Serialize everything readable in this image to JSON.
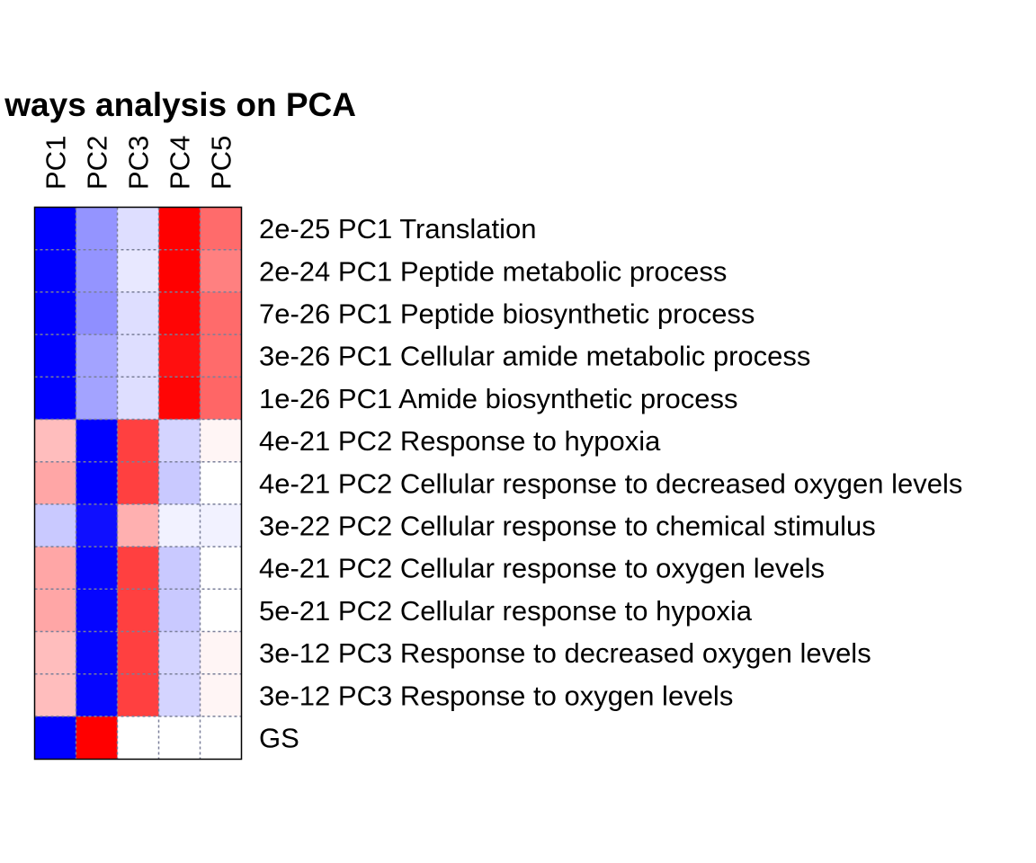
{
  "chart_data": {
    "type": "heatmap",
    "title": "ways analysis on PCA",
    "columns": [
      "PC1",
      "PC2",
      "PC3",
      "PC4",
      "PC5"
    ],
    "rows": [
      "2e-25 PC1 Translation",
      "2e-24 PC1 Peptide metabolic process",
      "7e-26 PC1 Peptide biosynthetic process",
      "3e-26 PC1 Cellular amide metabolic process",
      "1e-26 PC1 Amide biosynthetic process",
      "4e-21 PC2 Response to hypoxia",
      "4e-21 PC2 Cellular response to decreased oxygen levels",
      "3e-22 PC2 Cellular response to chemical stimulus",
      "4e-21 PC2 Cellular response to oxygen levels",
      "5e-21 PC2 Cellular response to hypoxia",
      "3e-12 PC3 Response to decreased oxygen levels",
      "3e-12 PC3 Response to oxygen levels",
      "GS"
    ],
    "values": [
      [
        -1.0,
        -0.42,
        -0.13,
        1.0,
        0.58
      ],
      [
        -1.0,
        -0.42,
        -0.09,
        1.0,
        0.5
      ],
      [
        -1.0,
        -0.44,
        -0.13,
        0.98,
        0.58
      ],
      [
        -1.0,
        -0.36,
        -0.13,
        0.94,
        0.58
      ],
      [
        -1.0,
        -0.36,
        -0.13,
        0.98,
        0.6
      ],
      [
        0.26,
        -1.0,
        0.75,
        -0.17,
        0.04
      ],
      [
        0.35,
        -1.0,
        0.75,
        -0.21,
        0.0
      ],
      [
        -0.21,
        -0.94,
        0.31,
        -0.05,
        -0.05
      ],
      [
        0.35,
        -0.98,
        0.75,
        -0.21,
        0.0
      ],
      [
        0.35,
        -0.98,
        0.75,
        -0.21,
        0.0
      ],
      [
        0.26,
        -0.98,
        0.75,
        -0.17,
        0.04
      ],
      [
        0.26,
        -0.98,
        0.75,
        -0.17,
        0.04
      ],
      [
        -1.0,
        1.0,
        0.0,
        0.0,
        0.0
      ]
    ],
    "color_scale": {
      "low": "#0000ff",
      "mid": "#ffffff",
      "high": "#ff0000",
      "range": [
        -1,
        1
      ]
    },
    "cell_border_color": "#7a7f99",
    "frame_color": "#000000",
    "legend": "none",
    "grid": true
  }
}
